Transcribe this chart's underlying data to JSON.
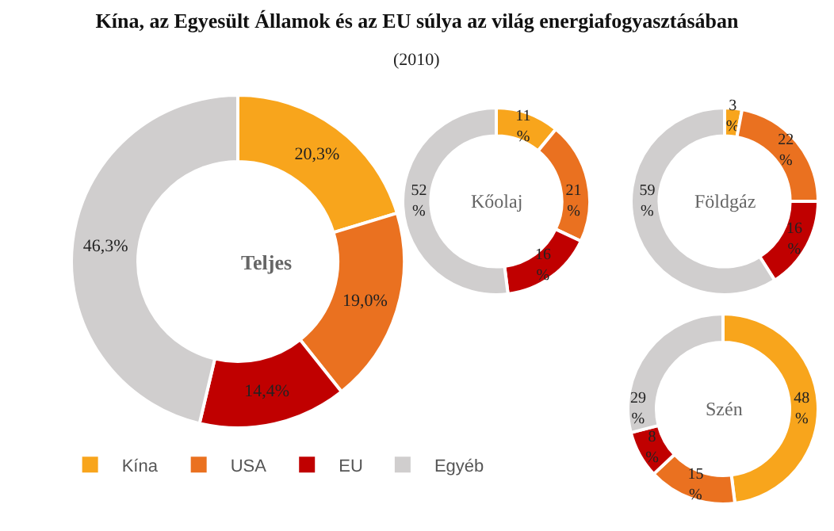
{
  "chart_data": [
    {
      "type": "donut",
      "title": "Kína, az Egyesült Államok és az EU súlya az világ energiafogyasztásában",
      "subtitle": "(2010)",
      "annotations": [
        "Teljes"
      ],
      "categories": [
        "Kína",
        "USA",
        "EU",
        "Egyéb"
      ],
      "values": [
        20.3,
        19.0,
        14.4,
        46.3
      ],
      "value_labels": [
        "20,3%",
        "19,0%",
        "14,4%",
        "46,3%"
      ],
      "colors": [
        "#f8a51c",
        "#ea7120",
        "#c00000",
        "#d0cece"
      ],
      "legend": "bottom"
    },
    {
      "type": "donut",
      "annotations": [
        "Kőolaj"
      ],
      "categories": [
        null,
        null,
        null,
        null
      ],
      "values": [
        11,
        21,
        16,
        52
      ],
      "value_labels": [
        "11 %",
        "21 %",
        "16 %",
        "52 %"
      ],
      "colors": [
        "#f8a51c",
        "#ea7120",
        "#c00000",
        "#d0cece"
      ]
    },
    {
      "type": "donut",
      "annotations": [
        "Földgáz"
      ],
      "categories": [
        null,
        null,
        null,
        null
      ],
      "values": [
        3,
        22,
        16,
        59
      ],
      "value_labels": [
        "3 %",
        "22 %",
        "16 %",
        "59 %"
      ],
      "colors": [
        "#f8a51c",
        "#ea7120",
        "#c00000",
        "#d0cece"
      ]
    },
    {
      "type": "donut",
      "annotations": [
        "Szén"
      ],
      "categories": [
        null,
        null,
        null,
        null
      ],
      "values": [
        48,
        15,
        8,
        29
      ],
      "value_labels": [
        "48 %",
        "15 %",
        "8 %",
        "29 %"
      ],
      "colors": [
        "#f8a51c",
        "#ea7120",
        "#c00000",
        "#d0cece"
      ]
    }
  ]
}
